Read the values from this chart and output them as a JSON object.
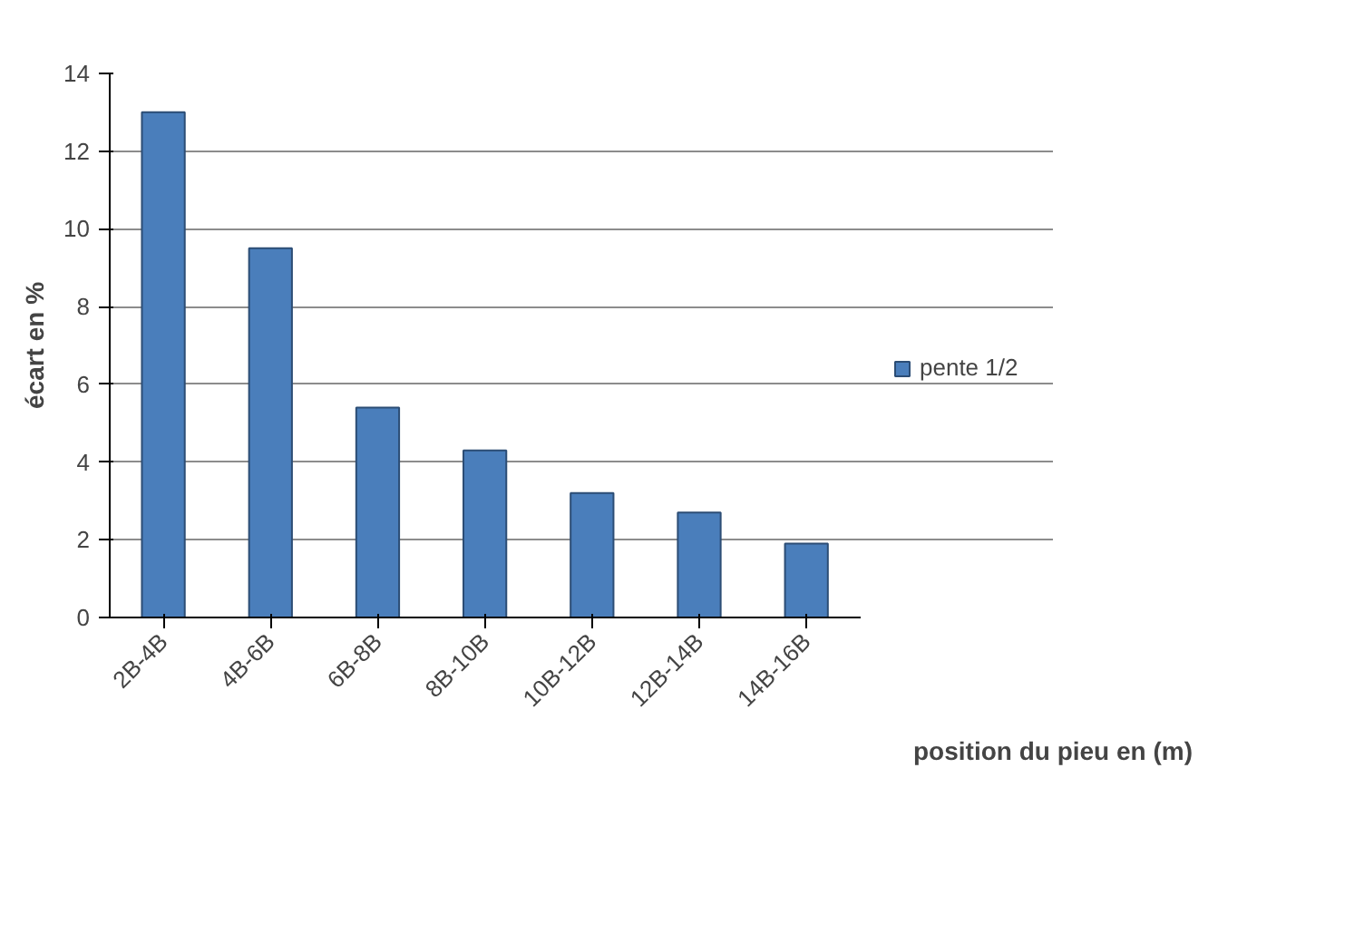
{
  "chart_data": {
    "type": "bar",
    "xlabel": "position du pieu en (m)",
    "ylabel": "écart en %",
    "categories": [
      "2B-4B",
      "4B-6B",
      "6B-8B",
      "8B-10B",
      "10B-12B",
      "12B-14B",
      "14B-16B"
    ],
    "series": [
      {
        "name": "pente 1/2",
        "color": "#4a7ebb",
        "values": [
          13,
          9.5,
          5.4,
          4.3,
          3.2,
          2.7,
          1.9
        ]
      }
    ],
    "ylim": [
      0,
      14
    ],
    "yticks": [
      0,
      2,
      4,
      6,
      8,
      10,
      12,
      14
    ],
    "grid": "y",
    "legend": "right"
  }
}
